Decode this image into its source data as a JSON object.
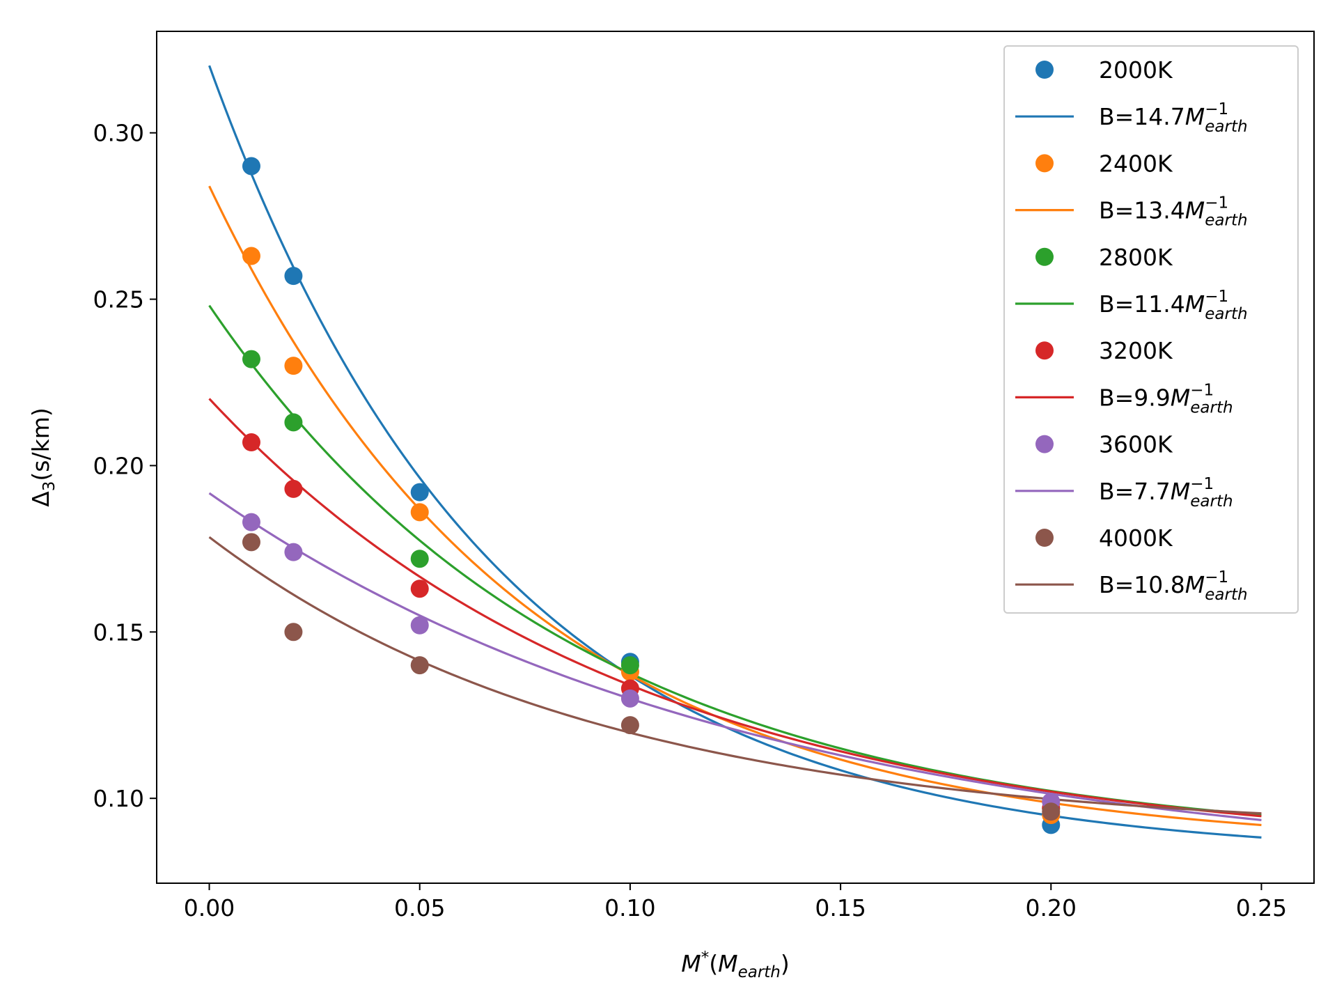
{
  "chart_data": {
    "type": "scatter",
    "title": "",
    "xlabel": {
      "main": "M",
      "sup": "*",
      "paren_open": "(",
      "paren_main": "M",
      "paren_sub": "earth",
      "paren_close": ")"
    },
    "ylabel": {
      "main": "Δ",
      "sub": "3",
      "rest": "(s/km)"
    },
    "xlim": [
      -0.0125,
      0.2625
    ],
    "ylim": [
      0.0745,
      0.3305
    ],
    "xticks": [
      0.0,
      0.05,
      0.1,
      0.15,
      0.2,
      0.25
    ],
    "xtick_labels": [
      "0.00",
      "0.05",
      "0.10",
      "0.15",
      "0.20",
      "0.25"
    ],
    "yticks": [
      0.1,
      0.15,
      0.2,
      0.25,
      0.3
    ],
    "ytick_labels": [
      "0.10",
      "0.15",
      "0.20",
      "0.25",
      "0.30"
    ],
    "grid": false,
    "legend_position": "upper-right",
    "series": [
      {
        "name": "2000K",
        "color": "#1f77b4",
        "points": {
          "x": [
            0.01,
            0.02,
            0.05,
            0.1,
            0.2
          ],
          "y": [
            0.29,
            0.257,
            0.192,
            0.141,
            0.092
          ]
        },
        "fit": {
          "B_label": "14.7",
          "B": 14.7,
          "a": 0.0822,
          "b": 0.238
        }
      },
      {
        "name": "2400K",
        "color": "#ff7f0e",
        "points": {
          "x": [
            0.01,
            0.02,
            0.05,
            0.1,
            0.2
          ],
          "y": [
            0.263,
            0.23,
            0.186,
            0.138,
            0.095
          ]
        },
        "fit": {
          "B_label": "13.4",
          "B": 13.4,
          "a": 0.085,
          "b": 0.199
        }
      },
      {
        "name": "2800K",
        "color": "#2ca02c",
        "points": {
          "x": [
            0.01,
            0.02,
            0.05,
            0.1,
            0.2
          ],
          "y": [
            0.232,
            0.213,
            0.172,
            0.14,
            0.097
          ]
        },
        "fit": {
          "B_label": "11.4",
          "B": 11.4,
          "a": 0.0856,
          "b": 0.1625
        }
      },
      {
        "name": "3200K",
        "color": "#d62728",
        "points": {
          "x": [
            0.01,
            0.02,
            0.05,
            0.1,
            0.2
          ],
          "y": [
            0.207,
            0.193,
            0.163,
            0.133,
            0.097
          ]
        },
        "fit": {
          "B_label": "9.9",
          "B": 9.9,
          "a": 0.0831,
          "b": 0.137
        }
      },
      {
        "name": "3600K",
        "color": "#9467bd",
        "points": {
          "x": [
            0.01,
            0.02,
            0.05,
            0.1,
            0.2
          ],
          "y": [
            0.183,
            0.174,
            0.152,
            0.13,
            0.099
          ]
        },
        "fit": {
          "B_label": "7.7",
          "B": 7.7,
          "a": 0.0767,
          "b": 0.115
        }
      },
      {
        "name": "4000K",
        "color": "#8c564b",
        "points": {
          "x": [
            0.01,
            0.02,
            0.05,
            0.1,
            0.2
          ],
          "y": [
            0.177,
            0.15,
            0.14,
            0.122,
            0.096
          ]
        },
        "fit": {
          "B_label": "10.8",
          "B": 10.8,
          "a": 0.0895,
          "b": 0.089
        }
      }
    ],
    "legend_fit_prefix": "B=",
    "legend_fit_unit": {
      "main": "M",
      "sup": "−1",
      "sub": "earth"
    }
  }
}
